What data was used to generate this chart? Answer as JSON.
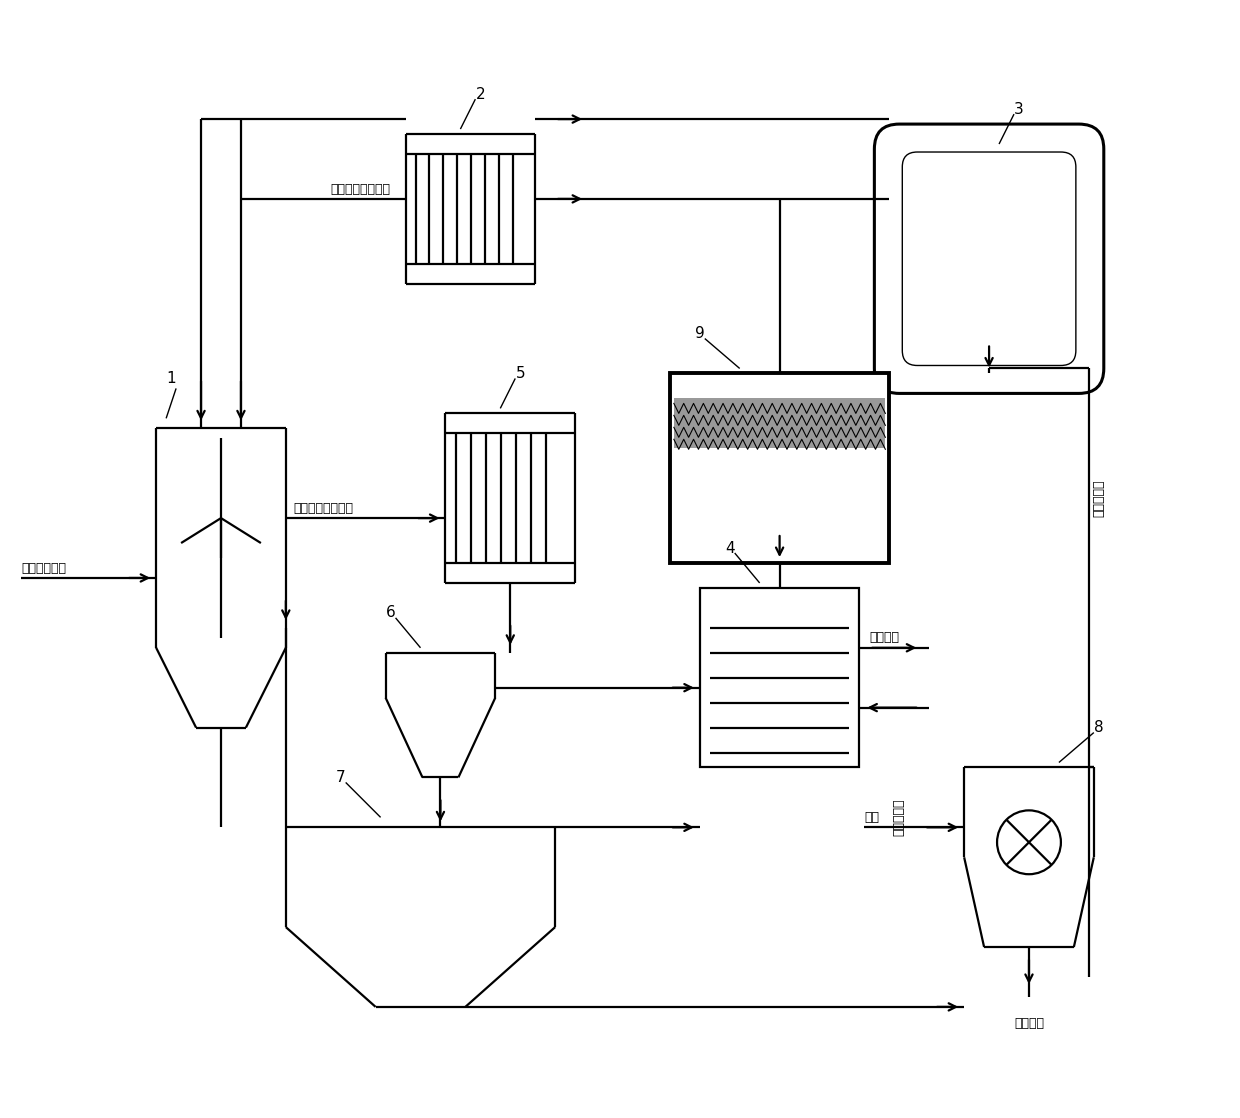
{
  "bg": "#ffffff",
  "lc": "#000000",
  "lw": 1.6,
  "labels": {
    "organic_soil": "有机污染土壤",
    "high_temp": "高温循环换热介质",
    "low_temp": "低温循环换热介质",
    "preheated_air": "预热空气",
    "air": "空气",
    "clean_soil": "清洁土壤",
    "low_temp_gas1": "低温不凝气",
    "low_temp_gas2": "低温不凝气",
    "n1": "1",
    "n2": "2",
    "n3": "3",
    "n4": "4",
    "n5": "5",
    "n6": "6",
    "n7": "7",
    "n8": "8",
    "n9": "9"
  }
}
